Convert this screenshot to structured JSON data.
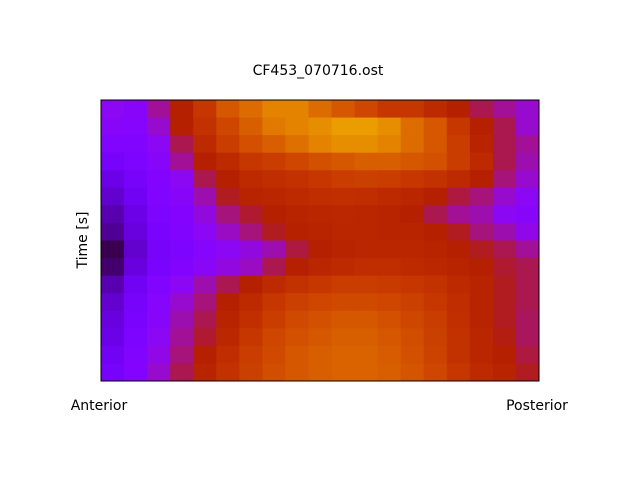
{
  "chart_data": {
    "type": "heatmap",
    "title": "CF453_070716.ost",
    "ylabel": "Time [s]",
    "x_end_labels": [
      "Anterior",
      "Posterior"
    ],
    "colormap": "gnuplot",
    "clim": [
      0,
      1
    ],
    "values": [
      [
        0.3,
        0.28,
        0.4,
        0.5,
        0.6,
        0.7,
        0.75,
        0.8,
        0.8,
        0.75,
        0.7,
        0.65,
        0.6,
        0.6,
        0.55,
        0.5,
        0.45,
        0.4,
        0.35
      ],
      [
        0.28,
        0.27,
        0.35,
        0.5,
        0.58,
        0.65,
        0.72,
        0.78,
        0.8,
        0.82,
        0.85,
        0.85,
        0.82,
        0.75,
        0.7,
        0.6,
        0.5,
        0.45,
        0.35
      ],
      [
        0.25,
        0.25,
        0.3,
        0.45,
        0.55,
        0.62,
        0.68,
        0.72,
        0.76,
        0.8,
        0.82,
        0.82,
        0.8,
        0.75,
        0.7,
        0.62,
        0.52,
        0.45,
        0.4
      ],
      [
        0.22,
        0.24,
        0.28,
        0.4,
        0.5,
        0.55,
        0.6,
        0.62,
        0.65,
        0.68,
        0.7,
        0.72,
        0.72,
        0.7,
        0.68,
        0.62,
        0.55,
        0.45,
        0.38
      ],
      [
        0.18,
        0.22,
        0.26,
        0.3,
        0.45,
        0.5,
        0.55,
        0.56,
        0.58,
        0.6,
        0.62,
        0.63,
        0.62,
        0.6,
        0.58,
        0.55,
        0.5,
        0.42,
        0.35
      ],
      [
        0.15,
        0.2,
        0.25,
        0.28,
        0.38,
        0.48,
        0.52,
        0.53,
        0.55,
        0.56,
        0.57,
        0.56,
        0.55,
        0.53,
        0.5,
        0.46,
        0.42,
        0.35,
        0.3
      ],
      [
        0.12,
        0.18,
        0.24,
        0.26,
        0.33,
        0.42,
        0.47,
        0.5,
        0.52,
        0.53,
        0.54,
        0.53,
        0.52,
        0.5,
        0.45,
        0.4,
        0.38,
        0.3,
        0.28
      ],
      [
        0.1,
        0.17,
        0.23,
        0.25,
        0.3,
        0.36,
        0.42,
        0.48,
        0.51,
        0.52,
        0.53,
        0.53,
        0.52,
        0.52,
        0.5,
        0.48,
        0.42,
        0.38,
        0.32
      ],
      [
        0.05,
        0.15,
        0.22,
        0.24,
        0.27,
        0.3,
        0.33,
        0.38,
        0.46,
        0.5,
        0.52,
        0.53,
        0.53,
        0.53,
        0.52,
        0.5,
        0.48,
        0.45,
        0.4
      ],
      [
        0.07,
        0.17,
        0.23,
        0.26,
        0.29,
        0.33,
        0.36,
        0.45,
        0.5,
        0.53,
        0.55,
        0.56,
        0.56,
        0.55,
        0.54,
        0.52,
        0.5,
        0.47,
        0.45
      ],
      [
        0.12,
        0.2,
        0.25,
        0.3,
        0.38,
        0.45,
        0.5,
        0.55,
        0.58,
        0.6,
        0.62,
        0.62,
        0.61,
        0.6,
        0.58,
        0.55,
        0.52,
        0.48,
        0.45
      ],
      [
        0.15,
        0.22,
        0.27,
        0.35,
        0.42,
        0.5,
        0.55,
        0.6,
        0.63,
        0.65,
        0.66,
        0.66,
        0.65,
        0.63,
        0.6,
        0.56,
        0.52,
        0.48,
        0.45
      ],
      [
        0.17,
        0.23,
        0.28,
        0.38,
        0.45,
        0.52,
        0.57,
        0.62,
        0.66,
        0.68,
        0.7,
        0.7,
        0.68,
        0.65,
        0.62,
        0.57,
        0.52,
        0.48,
        0.44
      ],
      [
        0.18,
        0.24,
        0.3,
        0.4,
        0.47,
        0.54,
        0.6,
        0.65,
        0.68,
        0.7,
        0.72,
        0.72,
        0.7,
        0.67,
        0.63,
        0.58,
        0.53,
        0.49,
        0.44
      ],
      [
        0.2,
        0.25,
        0.32,
        0.42,
        0.5,
        0.56,
        0.62,
        0.66,
        0.7,
        0.72,
        0.73,
        0.73,
        0.71,
        0.68,
        0.64,
        0.58,
        0.53,
        0.5,
        0.46
      ],
      [
        0.22,
        0.26,
        0.35,
        0.45,
        0.52,
        0.58,
        0.63,
        0.67,
        0.7,
        0.72,
        0.73,
        0.73,
        0.72,
        0.69,
        0.65,
        0.6,
        0.55,
        0.52,
        0.48
      ]
    ]
  }
}
